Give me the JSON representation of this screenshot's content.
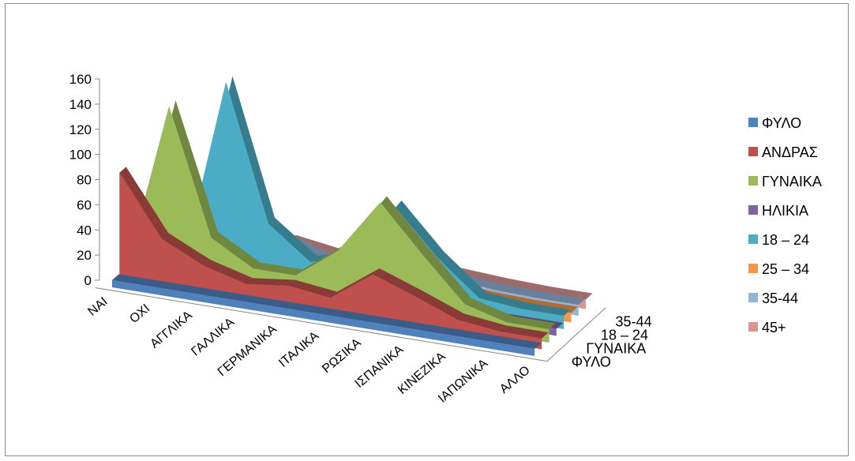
{
  "chart_data": {
    "type": "area",
    "variant": "3d-area",
    "categories": [
      "NAI",
      "OXI",
      "ΑΓΓΛΙΚΑ",
      "ΓΑΛΛΙΚΑ",
      "ΓΕΡΜΑΝΙΚΑ",
      "ΙΤΑΛΙΚΑ",
      "ΡΩΣΙΚΑ",
      "ΙΣΠΑΝΙΚΑ",
      "ΚΙΝΕΖΙΚΑ",
      "ΙΑΠΩΝΙΚΑ",
      "ΑΛΛΟ"
    ],
    "depth_labels": [
      "ΦΥΛΟ",
      "ΓΥΝΑΙΚΑ",
      "18 – 24",
      "35-44"
    ],
    "y_ticks": [
      "0",
      "20",
      "40",
      "60",
      "80",
      "100",
      "120",
      "140",
      "160"
    ],
    "ylim": [
      0,
      160
    ],
    "grid": false,
    "legend_position": "right",
    "series": [
      {
        "name": "ΦΥΛΟ",
        "color": "#4f81bd",
        "values": [
          0,
          0,
          0,
          0,
          0,
          0,
          0,
          0,
          0,
          0,
          0
        ]
      },
      {
        "name": "ΑΝΔΡΑΣ",
        "color": "#c0504d",
        "values": [
          80,
          33,
          17,
          8,
          12,
          8,
          32,
          20,
          7,
          3,
          3
        ]
      },
      {
        "name": "ΓΥΝΑΙΚΑ",
        "color": "#9bbb59",
        "values": [
          0,
          133,
          34,
          15,
          15,
          40,
          84,
          48,
          14,
          5,
          5
        ]
      },
      {
        "name": "ΗΛΙΚΙΑ",
        "color": "#8064a2",
        "values": [
          0,
          0,
          0,
          0,
          0,
          0,
          0,
          0,
          0,
          0,
          0
        ]
      },
      {
        "name": "18 – 24",
        "color": "#4bacc6",
        "values": [
          0,
          0,
          147,
          40,
          15,
          25,
          70,
          35,
          8,
          5,
          5
        ]
      },
      {
        "name": "25 – 34",
        "color": "#f79646",
        "values": [
          0,
          0,
          0,
          12,
          5,
          5,
          8,
          6,
          3,
          2,
          2
        ]
      },
      {
        "name": "35-44",
        "color": "#95b3d7",
        "values": [
          0,
          0,
          0,
          16,
          6,
          5,
          10,
          7,
          4,
          3,
          3
        ]
      },
      {
        "name": "45+",
        "color": "#d99694",
        "values": [
          0,
          0,
          0,
          10,
          5,
          5,
          7,
          5,
          3,
          2,
          2
        ]
      }
    ]
  }
}
